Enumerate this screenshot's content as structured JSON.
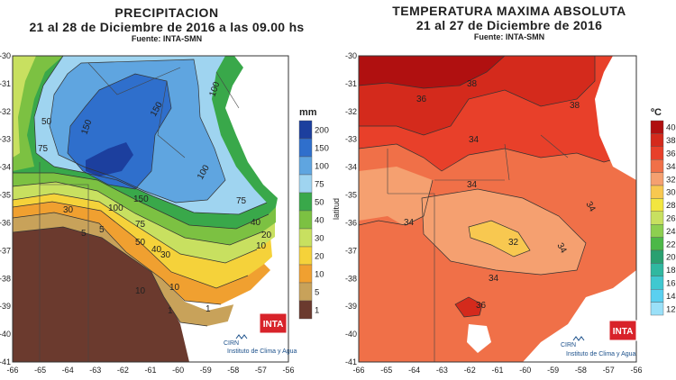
{
  "left_map": {
    "title": "PRECIPITACION",
    "subtitle": "21  al  28  de  Diciembre de  2016 a las 09.00 hs",
    "source": "Fuente: INTA-SMN",
    "unit": "mm",
    "legend": [
      {
        "label": "200",
        "color": "#1c3f9e"
      },
      {
        "label": "150",
        "color": "#2f6fcc"
      },
      {
        "label": "100",
        "color": "#5fa5e0"
      },
      {
        "label": "75",
        "color": "#9fd4f0"
      },
      {
        "label": "50",
        "color": "#39a84a"
      },
      {
        "label": "40",
        "color": "#7cc142"
      },
      {
        "label": "30",
        "color": "#c8e060"
      },
      {
        "label": "20",
        "color": "#f5d23a"
      },
      {
        "label": "10",
        "color": "#f0a030"
      },
      {
        "label": "5",
        "color": "#c8a25a"
      },
      {
        "label": "1",
        "color": "#6b3a2e"
      }
    ],
    "x_ticks": [
      "-66",
      "-65",
      "-64",
      "-63",
      "-62",
      "-61",
      "-60",
      "-59",
      "-58",
      "-57",
      "-56"
    ],
    "y_ticks": [
      "-30",
      "-31",
      "-32",
      "-33",
      "-34",
      "-35",
      "-36",
      "-37",
      "-38",
      "-39",
      "-40",
      "-41"
    ],
    "contour_labels": [
      "50",
      "75",
      "150",
      "100",
      "150",
      "100",
      "150",
      "100",
      "75",
      "75",
      "50",
      "40",
      "40",
      "30",
      "20",
      "10",
      "10",
      "10",
      "5",
      "30",
      "5",
      "1",
      "1"
    ]
  },
  "right_map": {
    "title": "TEMPERATURA  MAXIMA  ABSOLUTA",
    "subtitle": "21  al  27  de  Diciembre de 2016",
    "source": "Fuente: INTA-SMN",
    "unit": "ºC",
    "y_axis_label": "latitud",
    "legend": [
      {
        "label": "40",
        "color": "#b01010"
      },
      {
        "label": "38",
        "color": "#d42a1c"
      },
      {
        "label": "36",
        "color": "#e8402a"
      },
      {
        "label": "34",
        "color": "#f07048"
      },
      {
        "label": "32",
        "color": "#f5a070"
      },
      {
        "label": "30",
        "color": "#f8c850"
      },
      {
        "label": "28",
        "color": "#f2e640"
      },
      {
        "label": "26",
        "color": "#c8e060"
      },
      {
        "label": "24",
        "color": "#8dcf50"
      },
      {
        "label": "22",
        "color": "#4cb848"
      },
      {
        "label": "20",
        "color": "#2aa070"
      },
      {
        "label": "18",
        "color": "#30b8a0"
      },
      {
        "label": "16",
        "color": "#40c8d0"
      },
      {
        "label": "14",
        "color": "#5ad0f0"
      },
      {
        "label": "12",
        "color": "#9ae0f8"
      }
    ],
    "x_ticks": [
      "-66",
      "-65",
      "-64",
      "-63",
      "-62",
      "-61",
      "-60",
      "-59",
      "-58",
      "-57",
      "-56"
    ],
    "y_ticks": [
      "-30",
      "-31",
      "-32",
      "-33",
      "-34",
      "-35",
      "-36",
      "-37",
      "-38",
      "-39",
      "-40",
      "-41"
    ],
    "contour_labels": [
      "38",
      "36",
      "38",
      "34",
      "34",
      "34",
      "34",
      "32",
      "34",
      "34",
      "36"
    ]
  },
  "logos": {
    "inta": "INTA",
    "cirn": "CIRN",
    "institute": "Instituto de Clima y Agua"
  }
}
